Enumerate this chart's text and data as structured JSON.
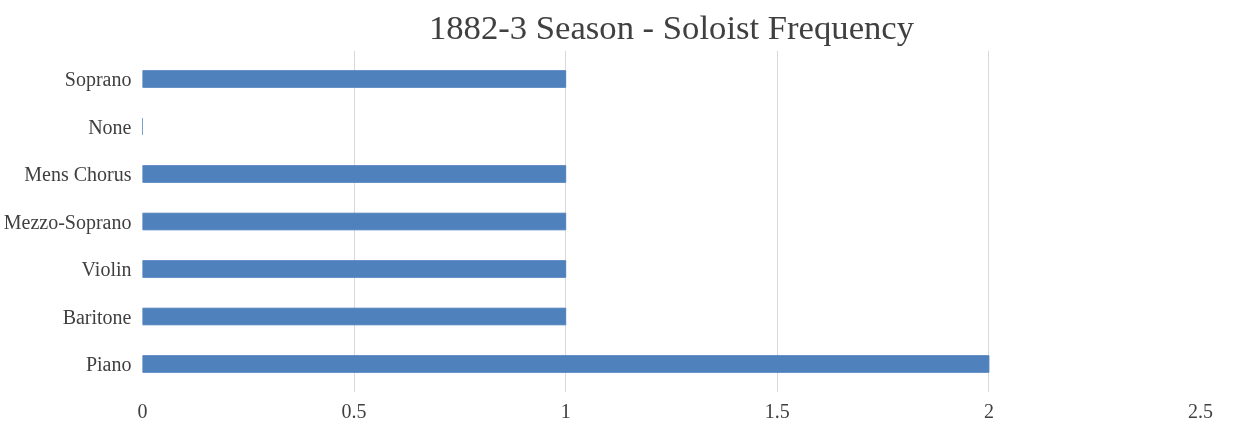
{
  "chart_data": {
    "type": "bar",
    "orientation": "horizontal",
    "title": "1882-3 Season - Soloist Frequency",
    "categories": [
      "Soprano",
      "None",
      "Mens Chorus",
      "Mezzo-Soprano",
      "Violin",
      "Baritone",
      "Piano"
    ],
    "values": [
      1,
      0,
      1,
      1,
      1,
      1,
      2
    ],
    "color": "#4f81bd",
    "xlim": [
      0,
      2.5
    ],
    "xticks": [
      0,
      0.5,
      1,
      1.5,
      2,
      2.5
    ],
    "grid": "x"
  }
}
